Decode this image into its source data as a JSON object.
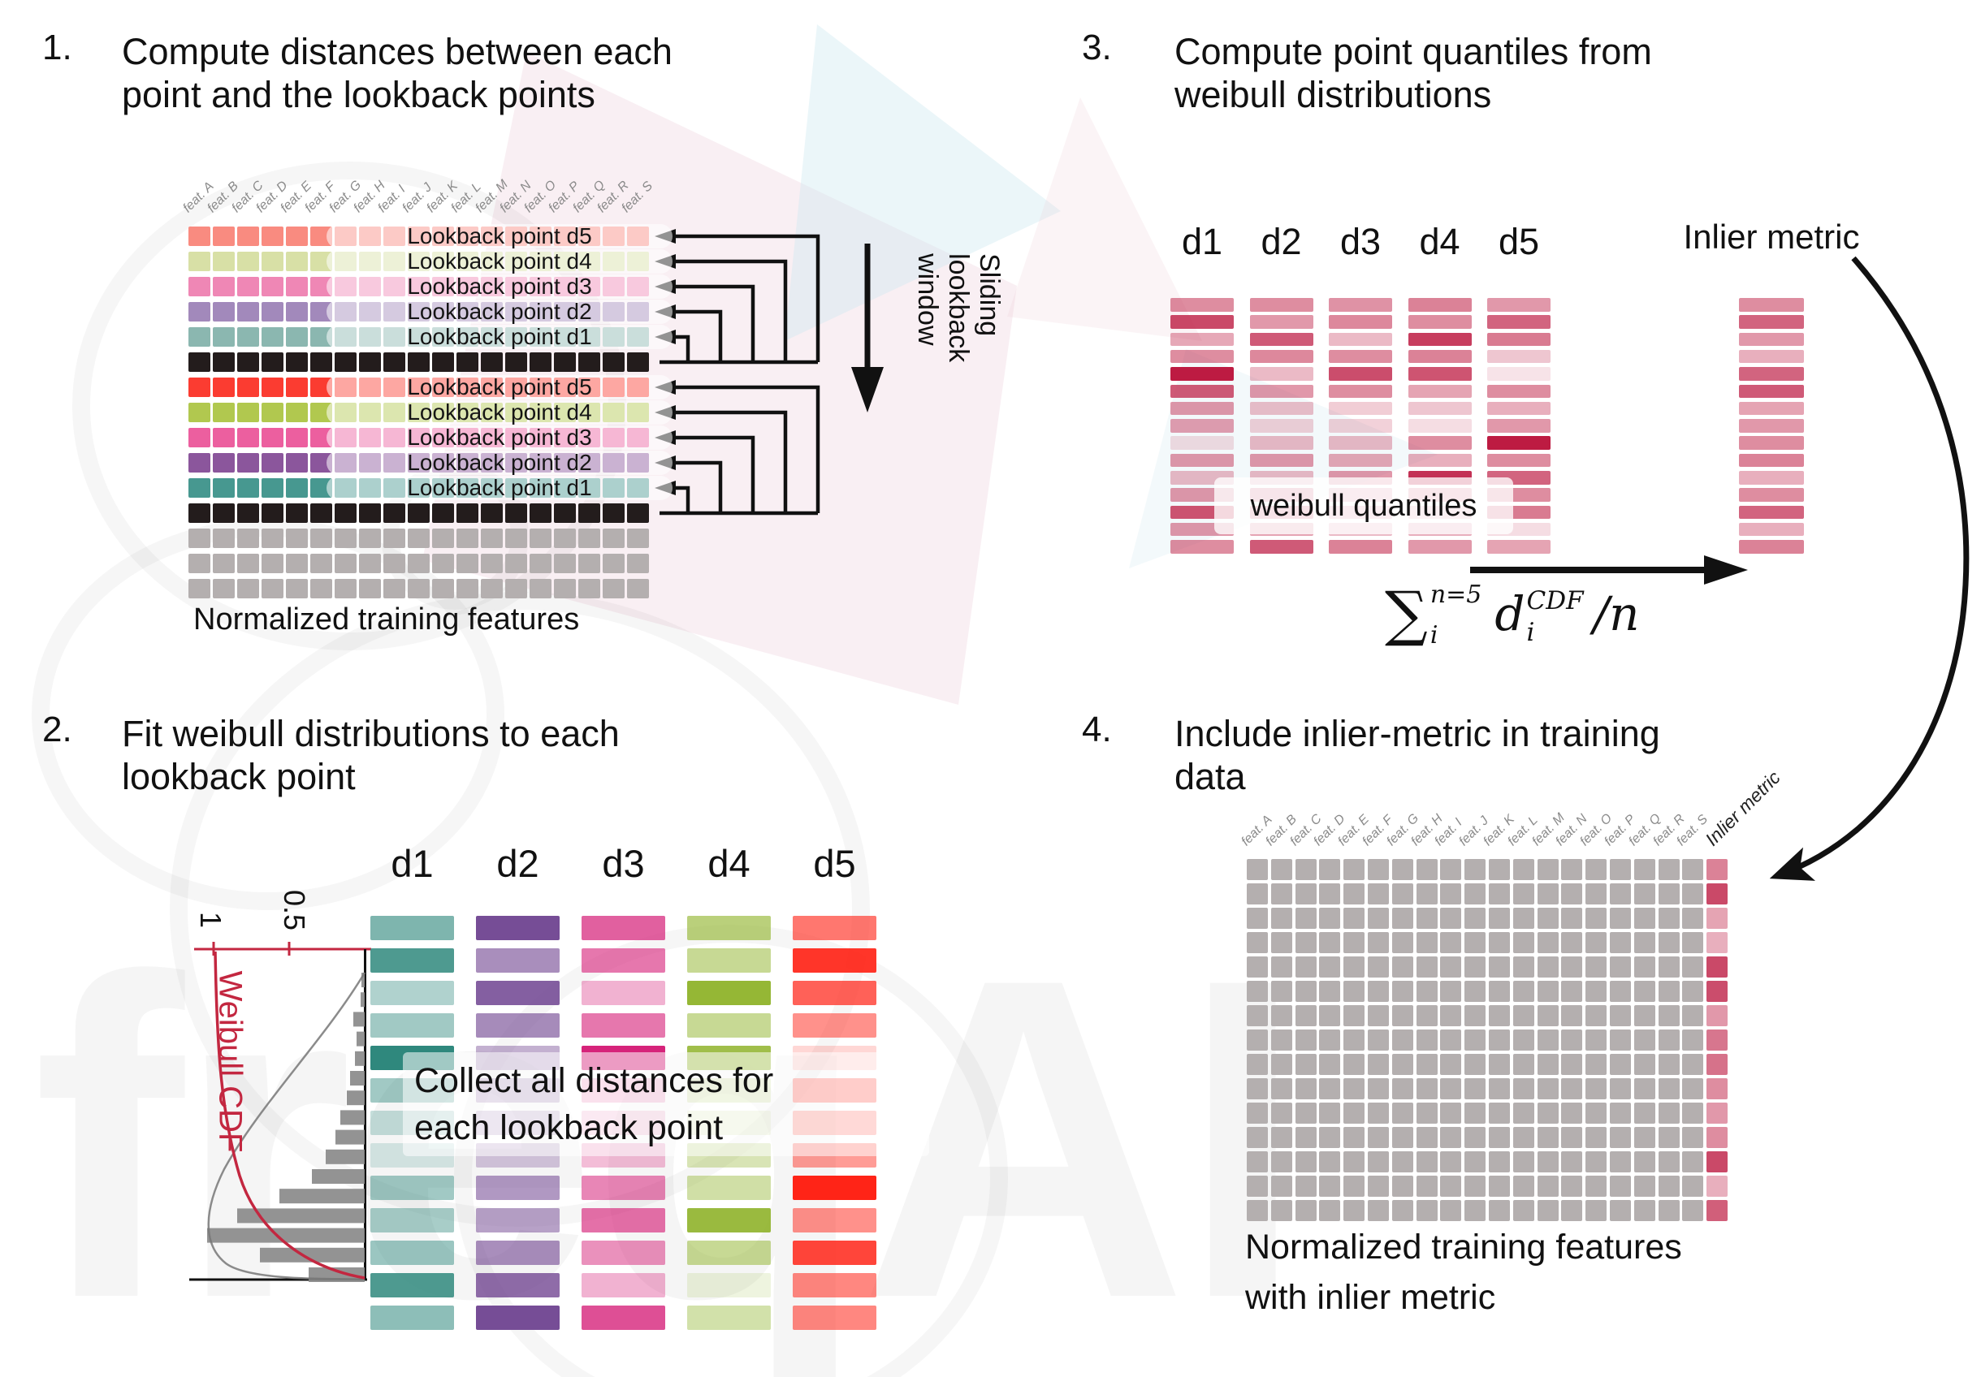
{
  "steps": [
    {
      "num": "1.",
      "title": "Compute distances between each\npoint and the lookback points"
    },
    {
      "num": "2.",
      "title": "Fit weibull distributions to each\nlookback point"
    },
    {
      "num": "3.",
      "title": "Compute point quantiles from\nweibull distributions"
    },
    {
      "num": "4.",
      "title": "Include inlier-metric in training\ndata"
    }
  ],
  "features": [
    "feat. A",
    "feat. B",
    "feat. C",
    "feat. D",
    "feat. E",
    "feat. F",
    "feat. G",
    "feat. H",
    "feat. I",
    "feat. J",
    "feat. K",
    "feat. L",
    "feat. M",
    "feat. N",
    "feat. O",
    "feat. P",
    "feat. Q",
    "feat. R",
    "feat. S"
  ],
  "q1": {
    "row_types": [
      "d5_light",
      "d4_light",
      "d3_light",
      "d2_light",
      "d1_light",
      "black",
      "d5",
      "d4",
      "d3",
      "d2",
      "d1",
      "black",
      "gray",
      "gray",
      "gray"
    ],
    "lookback_labels": [
      "Lookback point d5",
      "Lookback point d4",
      "Lookback point d3",
      "Lookback point d2",
      "Lookback point d1"
    ],
    "caption": "Normalized training features",
    "sliding_window_label": "Sliding\nlookback\nwindow"
  },
  "q2": {
    "col_labels": [
      "d1",
      "d2",
      "d3",
      "d4",
      "d5"
    ],
    "overlay_text": "Collect all distances for\neach lookback point",
    "hist": {
      "tick_1": "1",
      "tick_05": "0.5",
      "cdf_label": "Weibull CDF",
      "bar_lengths": [
        4,
        5,
        14,
        10,
        12,
        18,
        22,
        30,
        36,
        48,
        65,
        105,
        157,
        194,
        129,
        69
      ]
    },
    "opacity": {
      "d1": [
        0.62,
        0.85,
        0.38,
        0.45,
        1.0,
        0.45,
        0.28,
        0.18,
        0.45,
        0.42,
        0.48,
        0.85,
        0.55
      ],
      "d2": [
        0.95,
        0.6,
        0.85,
        0.62,
        0.42,
        0.35,
        0.28,
        0.3,
        0.55,
        0.5,
        0.6,
        0.78,
        0.95
      ],
      "d3": [
        0.72,
        0.62,
        0.35,
        0.62,
        1.0,
        0.3,
        0.22,
        0.3,
        0.55,
        0.65,
        0.5,
        0.35,
        0.8
      ],
      "d4": [
        0.62,
        0.5,
        0.95,
        0.5,
        0.85,
        0.28,
        0.18,
        0.35,
        0.42,
        0.9,
        0.5,
        0.15,
        0.4
      ],
      "d5": [
        0.62,
        0.92,
        0.72,
        0.5,
        0.18,
        0.5,
        0.38,
        0.45,
        1.0,
        0.5,
        0.85,
        0.55,
        0.55
      ]
    }
  },
  "q3": {
    "col_labels": [
      "d1",
      "d2",
      "d3",
      "d4",
      "d5"
    ],
    "pill_label": "weibull quantiles",
    "inlier_label": "Inlier metric",
    "formula": {
      "sum": "∑",
      "sum_sup": "n=5",
      "sum_sub": "i",
      "var": "d",
      "var_sup": "CDF",
      "var_sub": "i",
      "tail": "/n"
    },
    "opacity": {
      "d1": [
        0.5,
        0.8,
        0.38,
        0.5,
        1.0,
        0.72,
        0.45,
        0.42,
        0.15,
        0.45,
        0.3,
        0.45,
        0.75,
        0.45,
        0.5
      ],
      "d2": [
        0.5,
        0.45,
        0.72,
        0.52,
        0.3,
        0.45,
        0.28,
        0.2,
        0.3,
        0.45,
        0.3,
        0.5,
        0.55,
        0.4,
        0.72
      ],
      "d3": [
        0.48,
        0.52,
        0.3,
        0.5,
        0.78,
        0.5,
        0.22,
        0.2,
        0.3,
        0.38,
        0.45,
        0.35,
        0.35,
        0.3,
        0.55
      ],
      "d4": [
        0.55,
        0.5,
        0.85,
        0.55,
        0.75,
        0.4,
        0.25,
        0.15,
        0.5,
        0.35,
        0.9,
        0.45,
        0.3,
        0.35,
        0.45
      ],
      "d5": [
        0.45,
        0.68,
        0.58,
        0.25,
        0.12,
        0.5,
        0.35,
        0.45,
        1.0,
        0.5,
        0.68,
        0.5,
        0.58,
        0.15,
        0.4
      ],
      "inlier": [
        0.5,
        0.68,
        0.45,
        0.35,
        0.68,
        0.72,
        0.4,
        0.45,
        0.5,
        0.55,
        0.35,
        0.5,
        0.68,
        0.35,
        0.55
      ]
    }
  },
  "q4": {
    "caption": "Normalized training features\nwith inlier metric",
    "inlier_header": "Inlier metric",
    "inlier_opacity": [
      0.55,
      0.8,
      0.4,
      0.35,
      0.8,
      0.78,
      0.45,
      0.6,
      0.62,
      0.5,
      0.45,
      0.5,
      0.8,
      0.35,
      0.7
    ]
  },
  "watermark": "freqAI",
  "colors": {
    "cell": {
      "d1": "#479890",
      "d2": "#8b569c",
      "d3": "#ec5f9f",
      "d4": "#b1c84f",
      "d5": "#fb3c31",
      "d1_light": "#8bb7b0",
      "d2_light": "#a289bb",
      "d3_light": "#ef87b5",
      "d4_light": "#d8e0a6",
      "d5_light": "#f98b80",
      "black": "#231c1c",
      "gray": "#b4afaf"
    },
    "q2_base": {
      "d1": "#2f887d",
      "d2": "#6f4390",
      "d3": "#d6237a",
      "d4": "#8fb32a",
      "d5": "#ff2417"
    },
    "q3_crimson": "#bd1b42",
    "hist_bar": "#8a8a8a",
    "cdf_red": "#c32740",
    "arrow_black": "#111111"
  }
}
